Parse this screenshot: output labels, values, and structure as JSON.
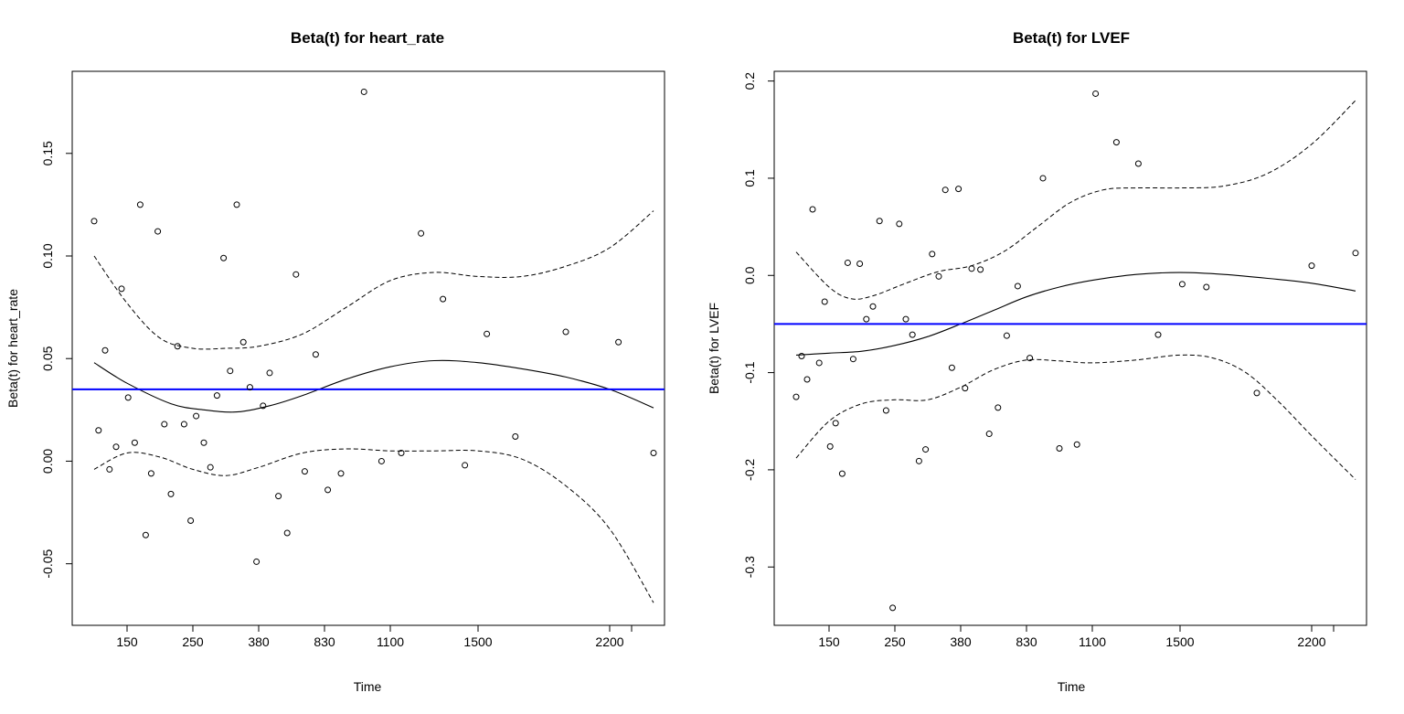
{
  "panels": [
    {
      "chart_data": {
        "type": "scatter",
        "title": "Beta(t) for heart_rate",
        "xlabel": "Time",
        "ylabel": "Beta(t) for heart_rate",
        "x_ticks": [
          {
            "label": "150",
            "pos": 2
          },
          {
            "label": "250",
            "pos": 5
          },
          {
            "label": "380",
            "pos": 8
          },
          {
            "label": "830",
            "pos": 11
          },
          {
            "label": "1100",
            "pos": 14
          },
          {
            "label": "1500",
            "pos": 18
          },
          {
            "label": "2200",
            "pos": 24
          },
          {
            "label": "",
            "pos": 25
          }
        ],
        "xlim": [
          -0.5,
          26.5
        ],
        "ylim": [
          -0.08,
          0.19
        ],
        "y_ticks": [
          -0.05,
          0.0,
          0.05,
          0.1,
          0.15
        ],
        "y_tick_labels": [
          "-0.05",
          "0.00",
          "0.05",
          "0.10",
          "0.15"
        ],
        "grid": false,
        "reference_line": {
          "y": 0.035,
          "color": "#0000ff"
        },
        "points": [
          {
            "x": 0.5,
            "y": 0.117
          },
          {
            "x": 0.7,
            "y": 0.015
          },
          {
            "x": 1.0,
            "y": 0.054
          },
          {
            "x": 1.2,
            "y": -0.004
          },
          {
            "x": 1.5,
            "y": 0.007
          },
          {
            "x": 1.75,
            "y": 0.084
          },
          {
            "x": 2.05,
            "y": 0.031
          },
          {
            "x": 2.35,
            "y": 0.009
          },
          {
            "x": 2.6,
            "y": 0.125
          },
          {
            "x": 2.85,
            "y": -0.036
          },
          {
            "x": 3.1,
            "y": -0.006
          },
          {
            "x": 3.4,
            "y": 0.112
          },
          {
            "x": 3.7,
            "y": 0.018
          },
          {
            "x": 4.0,
            "y": -0.016
          },
          {
            "x": 4.3,
            "y": 0.056
          },
          {
            "x": 4.6,
            "y": 0.018
          },
          {
            "x": 4.9,
            "y": -0.029
          },
          {
            "x": 5.15,
            "y": 0.022
          },
          {
            "x": 5.5,
            "y": 0.009
          },
          {
            "x": 5.8,
            "y": -0.003
          },
          {
            "x": 6.1,
            "y": 0.032
          },
          {
            "x": 6.4,
            "y": 0.099
          },
          {
            "x": 6.7,
            "y": 0.044
          },
          {
            "x": 7.0,
            "y": 0.125
          },
          {
            "x": 7.3,
            "y": 0.058
          },
          {
            "x": 7.6,
            "y": 0.036
          },
          {
            "x": 7.9,
            "y": -0.049
          },
          {
            "x": 8.2,
            "y": 0.027
          },
          {
            "x": 8.5,
            "y": 0.043
          },
          {
            "x": 8.9,
            "y": -0.017
          },
          {
            "x": 9.3,
            "y": -0.035
          },
          {
            "x": 9.7,
            "y": 0.091
          },
          {
            "x": 10.1,
            "y": -0.005
          },
          {
            "x": 10.6,
            "y": 0.052
          },
          {
            "x": 11.15,
            "y": -0.014
          },
          {
            "x": 11.75,
            "y": -0.006
          },
          {
            "x": 12.8,
            "y": 0.18
          },
          {
            "x": 13.6,
            "y": 0.0
          },
          {
            "x": 14.5,
            "y": 0.004
          },
          {
            "x": 15.4,
            "y": 0.111
          },
          {
            "x": 16.4,
            "y": 0.079
          },
          {
            "x": 17.4,
            "y": -0.002
          },
          {
            "x": 18.4,
            "y": 0.062
          },
          {
            "x": 19.7,
            "y": 0.012
          },
          {
            "x": 22.0,
            "y": 0.063
          },
          {
            "x": 24.4,
            "y": 0.058
          },
          {
            "x": 26.0,
            "y": 0.004
          }
        ],
        "fit": [
          {
            "x": 0.5,
            "y": 0.048
          },
          {
            "x": 2.0,
            "y": 0.038
          },
          {
            "x": 4.0,
            "y": 0.028
          },
          {
            "x": 5.5,
            "y": 0.025
          },
          {
            "x": 7.0,
            "y": 0.024
          },
          {
            "x": 8.5,
            "y": 0.027
          },
          {
            "x": 10.0,
            "y": 0.032
          },
          {
            "x": 12.0,
            "y": 0.04
          },
          {
            "x": 14.0,
            "y": 0.046
          },
          {
            "x": 16.0,
            "y": 0.049
          },
          {
            "x": 18.0,
            "y": 0.048
          },
          {
            "x": 20.0,
            "y": 0.045
          },
          {
            "x": 22.0,
            "y": 0.041
          },
          {
            "x": 24.0,
            "y": 0.035
          },
          {
            "x": 26.0,
            "y": 0.026
          }
        ],
        "upper": [
          {
            "x": 0.5,
            "y": 0.1
          },
          {
            "x": 2.0,
            "y": 0.077
          },
          {
            "x": 3.5,
            "y": 0.06
          },
          {
            "x": 5.0,
            "y": 0.055
          },
          {
            "x": 6.5,
            "y": 0.055
          },
          {
            "x": 8.0,
            "y": 0.056
          },
          {
            "x": 10.0,
            "y": 0.062
          },
          {
            "x": 12.0,
            "y": 0.075
          },
          {
            "x": 14.0,
            "y": 0.088
          },
          {
            "x": 16.0,
            "y": 0.092
          },
          {
            "x": 18.0,
            "y": 0.09
          },
          {
            "x": 20.0,
            "y": 0.09
          },
          {
            "x": 22.0,
            "y": 0.095
          },
          {
            "x": 24.0,
            "y": 0.104
          },
          {
            "x": 26.0,
            "y": 0.122
          }
        ],
        "lower": [
          {
            "x": 0.5,
            "y": -0.004
          },
          {
            "x": 2.0,
            "y": 0.004
          },
          {
            "x": 3.5,
            "y": 0.002
          },
          {
            "x": 5.0,
            "y": -0.004
          },
          {
            "x": 6.5,
            "y": -0.007
          },
          {
            "x": 8.0,
            "y": -0.003
          },
          {
            "x": 10.0,
            "y": 0.004
          },
          {
            "x": 12.0,
            "y": 0.006
          },
          {
            "x": 14.0,
            "y": 0.005
          },
          {
            "x": 16.0,
            "y": 0.005
          },
          {
            "x": 18.0,
            "y": 0.005
          },
          {
            "x": 20.0,
            "y": 0.001
          },
          {
            "x": 22.0,
            "y": -0.012
          },
          {
            "x": 24.0,
            "y": -0.033
          },
          {
            "x": 26.0,
            "y": -0.069
          }
        ]
      }
    },
    {
      "chart_data": {
        "type": "scatter",
        "title": "Beta(t) for LVEF",
        "xlabel": "Time",
        "ylabel": "Beta(t) for LVEF",
        "x_ticks": [
          {
            "label": "150",
            "pos": 2
          },
          {
            "label": "250",
            "pos": 5
          },
          {
            "label": "380",
            "pos": 8
          },
          {
            "label": "830",
            "pos": 11
          },
          {
            "label": "1100",
            "pos": 14
          },
          {
            "label": "1500",
            "pos": 18
          },
          {
            "label": "2200",
            "pos": 24
          },
          {
            "label": "",
            "pos": 25
          }
        ],
        "xlim": [
          -0.5,
          26.5
        ],
        "ylim": [
          -0.36,
          0.21
        ],
        "y_ticks": [
          -0.3,
          -0.2,
          -0.1,
          0.0,
          0.1,
          0.2
        ],
        "y_tick_labels": [
          "-0.3",
          "-0.2",
          "-0.1",
          "0.0",
          "0.1",
          "0.2"
        ],
        "grid": false,
        "reference_line": {
          "y": -0.05,
          "color": "#0000ff"
        },
        "points": [
          {
            "x": 0.5,
            "y": -0.125
          },
          {
            "x": 0.75,
            "y": -0.083
          },
          {
            "x": 1.0,
            "y": -0.107
          },
          {
            "x": 1.25,
            "y": 0.068
          },
          {
            "x": 1.55,
            "y": -0.09
          },
          {
            "x": 1.8,
            "y": -0.027
          },
          {
            "x": 2.05,
            "y": -0.176
          },
          {
            "x": 2.3,
            "y": -0.152
          },
          {
            "x": 2.6,
            "y": -0.204
          },
          {
            "x": 2.85,
            "y": 0.013
          },
          {
            "x": 3.1,
            "y": -0.086
          },
          {
            "x": 3.4,
            "y": 0.012
          },
          {
            "x": 3.7,
            "y": -0.045
          },
          {
            "x": 4.0,
            "y": -0.032
          },
          {
            "x": 4.3,
            "y": 0.056
          },
          {
            "x": 4.6,
            "y": -0.139
          },
          {
            "x": 4.9,
            "y": -0.342
          },
          {
            "x": 5.2,
            "y": 0.053
          },
          {
            "x": 5.5,
            "y": -0.045
          },
          {
            "x": 5.8,
            "y": -0.061
          },
          {
            "x": 6.1,
            "y": -0.191
          },
          {
            "x": 6.4,
            "y": -0.179
          },
          {
            "x": 6.7,
            "y": 0.022
          },
          {
            "x": 7.0,
            "y": -0.001
          },
          {
            "x": 7.3,
            "y": 0.088
          },
          {
            "x": 7.6,
            "y": -0.095
          },
          {
            "x": 7.9,
            "y": 0.089
          },
          {
            "x": 8.2,
            "y": -0.116
          },
          {
            "x": 8.5,
            "y": 0.007
          },
          {
            "x": 8.9,
            "y": 0.006
          },
          {
            "x": 9.3,
            "y": -0.163
          },
          {
            "x": 9.7,
            "y": -0.136
          },
          {
            "x": 10.1,
            "y": -0.062
          },
          {
            "x": 10.6,
            "y": -0.011
          },
          {
            "x": 11.15,
            "y": -0.085
          },
          {
            "x": 11.75,
            "y": 0.1
          },
          {
            "x": 12.5,
            "y": -0.178
          },
          {
            "x": 13.3,
            "y": -0.174
          },
          {
            "x": 14.15,
            "y": 0.187
          },
          {
            "x": 15.1,
            "y": 0.137
          },
          {
            "x": 16.1,
            "y": 0.115
          },
          {
            "x": 17.0,
            "y": -0.061
          },
          {
            "x": 18.1,
            "y": -0.009
          },
          {
            "x": 19.2,
            "y": -0.012
          },
          {
            "x": 21.5,
            "y": -0.121
          },
          {
            "x": 24.0,
            "y": 0.01
          },
          {
            "x": 26.0,
            "y": 0.023
          }
        ],
        "fit": [
          {
            "x": 0.5,
            "y": -0.082
          },
          {
            "x": 2.0,
            "y": -0.08
          },
          {
            "x": 3.5,
            "y": -0.078
          },
          {
            "x": 5.0,
            "y": -0.072
          },
          {
            "x": 6.5,
            "y": -0.063
          },
          {
            "x": 8.0,
            "y": -0.05
          },
          {
            "x": 9.5,
            "y": -0.036
          },
          {
            "x": 11.0,
            "y": -0.022
          },
          {
            "x": 12.5,
            "y": -0.012
          },
          {
            "x": 14.0,
            "y": -0.005
          },
          {
            "x": 16.0,
            "y": 0.001
          },
          {
            "x": 18.0,
            "y": 0.003
          },
          {
            "x": 20.0,
            "y": 0.001
          },
          {
            "x": 22.0,
            "y": -0.003
          },
          {
            "x": 24.0,
            "y": -0.008
          },
          {
            "x": 26.0,
            "y": -0.016
          }
        ],
        "upper": [
          {
            "x": 0.5,
            "y": 0.024
          },
          {
            "x": 2.0,
            "y": -0.012
          },
          {
            "x": 3.0,
            "y": -0.024
          },
          {
            "x": 4.0,
            "y": -0.021
          },
          {
            "x": 5.5,
            "y": -0.008
          },
          {
            "x": 7.0,
            "y": 0.004
          },
          {
            "x": 8.5,
            "y": 0.01
          },
          {
            "x": 10.0,
            "y": 0.025
          },
          {
            "x": 11.5,
            "y": 0.05
          },
          {
            "x": 13.0,
            "y": 0.075
          },
          {
            "x": 14.5,
            "y": 0.088
          },
          {
            "x": 16.0,
            "y": 0.09
          },
          {
            "x": 18.0,
            "y": 0.09
          },
          {
            "x": 20.0,
            "y": 0.092
          },
          {
            "x": 22.0,
            "y": 0.105
          },
          {
            "x": 24.0,
            "y": 0.135
          },
          {
            "x": 26.0,
            "y": 0.18
          }
        ],
        "lower": [
          {
            "x": 0.5,
            "y": -0.188
          },
          {
            "x": 2.0,
            "y": -0.15
          },
          {
            "x": 3.5,
            "y": -0.132
          },
          {
            "x": 5.0,
            "y": -0.128
          },
          {
            "x": 6.5,
            "y": -0.128
          },
          {
            "x": 8.0,
            "y": -0.115
          },
          {
            "x": 9.5,
            "y": -0.097
          },
          {
            "x": 11.0,
            "y": -0.087
          },
          {
            "x": 12.5,
            "y": -0.088
          },
          {
            "x": 14.0,
            "y": -0.09
          },
          {
            "x": 16.0,
            "y": -0.087
          },
          {
            "x": 18.0,
            "y": -0.082
          },
          {
            "x": 19.5,
            "y": -0.085
          },
          {
            "x": 21.0,
            "y": -0.1
          },
          {
            "x": 22.5,
            "y": -0.13
          },
          {
            "x": 24.0,
            "y": -0.165
          },
          {
            "x": 26.0,
            "y": -0.21
          }
        ]
      }
    }
  ]
}
